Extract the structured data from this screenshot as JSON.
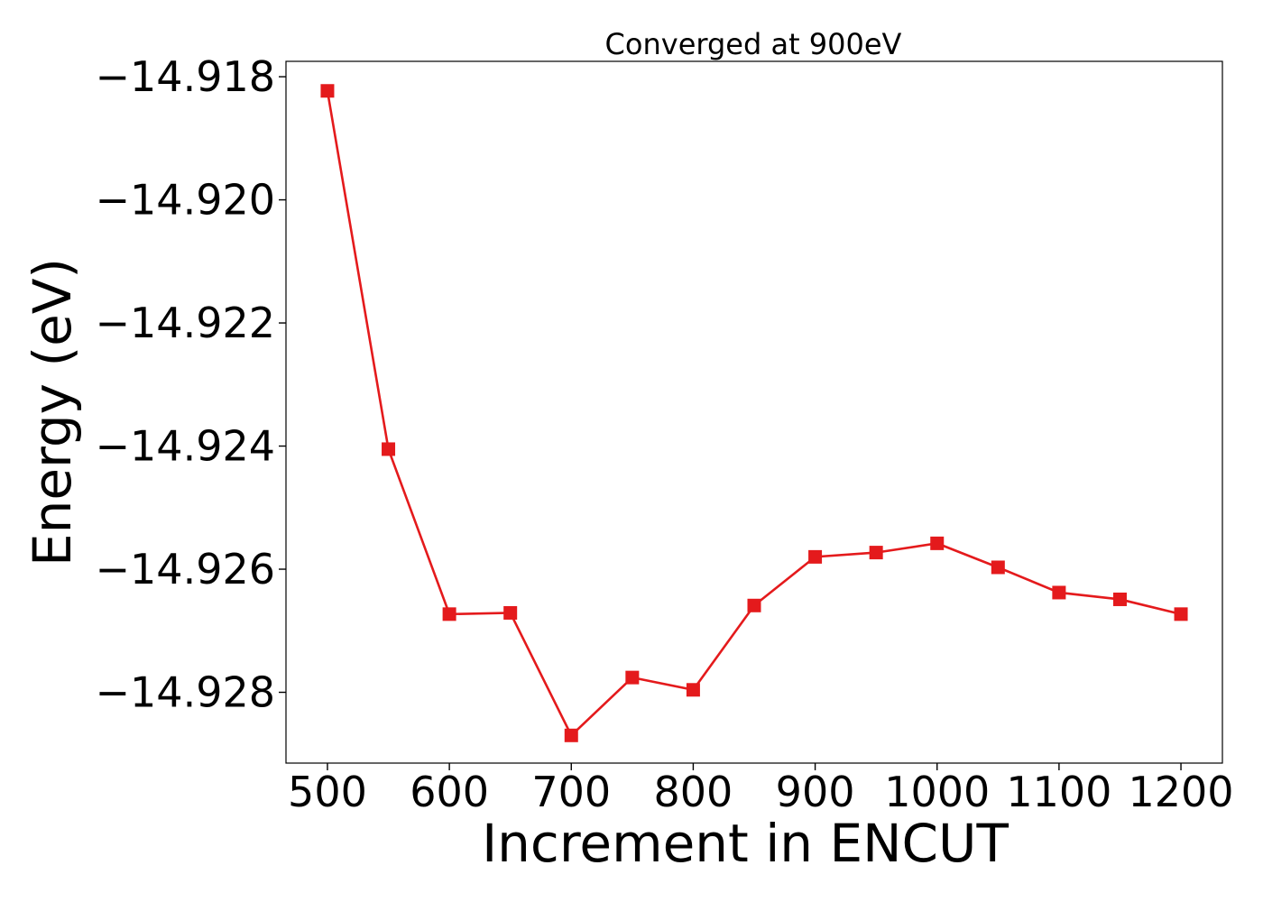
{
  "chart_data": {
    "type": "line",
    "title": "Converged at 900eV",
    "xlabel": "Increment in ENCUT",
    "ylabel": "Energy (eV)",
    "xlim": [
      466,
      1234
    ],
    "ylim": [
      -14.92915,
      -14.91775
    ],
    "xticks": [
      500,
      600,
      700,
      800,
      900,
      1000,
      1100,
      1200
    ],
    "xtick_labels": [
      "500",
      "600",
      "700",
      "800",
      "900",
      "1000",
      "1100",
      "1200"
    ],
    "yticks": [
      -14.918,
      -14.92,
      -14.922,
      -14.924,
      -14.926,
      -14.928
    ],
    "ytick_labels": [
      "−14.918",
      "−14.920",
      "−14.922",
      "−14.924",
      "−14.926",
      "−14.928"
    ],
    "grid": false,
    "marker": "square",
    "color": "#e41a1c",
    "x": [
      500,
      550,
      600,
      650,
      700,
      750,
      800,
      850,
      900,
      950,
      1000,
      1050,
      1100,
      1150,
      1200
    ],
    "series": [
      {
        "values": [
          -14.91823,
          -14.92405,
          -14.92673,
          -14.92671,
          -14.9287,
          -14.92776,
          -14.92796,
          -14.92659,
          -14.9258,
          -14.92573,
          -14.92558,
          -14.92597,
          -14.92638,
          -14.92649,
          -14.92673
        ]
      }
    ]
  }
}
